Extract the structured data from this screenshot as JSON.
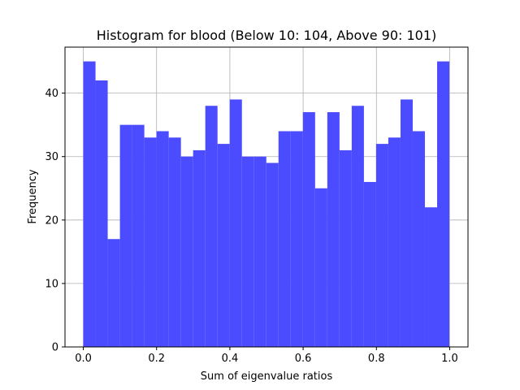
{
  "chart_data": {
    "type": "bar",
    "title": "Histogram for blood (Below 10: 104, Above 90: 101)",
    "xlabel": "Sum of eigenvalue ratios",
    "ylabel": "Frequency",
    "xlim": [
      -0.05,
      1.05
    ],
    "ylim": [
      0,
      47.25
    ],
    "grid": true,
    "bar_color": "#4b4bff",
    "bin_start": 0.0,
    "bin_width": 0.0333,
    "values": [
      45,
      42,
      17,
      35,
      35,
      33,
      34,
      33,
      30,
      31,
      38,
      32,
      39,
      30,
      30,
      29,
      34,
      34,
      37,
      25,
      37,
      31,
      38,
      26,
      32,
      33,
      39,
      34,
      22,
      45
    ],
    "xticks": [
      {
        "value": 0.0,
        "label": "0.0"
      },
      {
        "value": 0.2,
        "label": "0.2"
      },
      {
        "value": 0.4,
        "label": "0.4"
      },
      {
        "value": 0.6,
        "label": "0.6"
      },
      {
        "value": 0.8,
        "label": "0.8"
      },
      {
        "value": 1.0,
        "label": "1.0"
      }
    ],
    "yticks": [
      {
        "value": 0,
        "label": "0"
      },
      {
        "value": 10,
        "label": "10"
      },
      {
        "value": 20,
        "label": "20"
      },
      {
        "value": 30,
        "label": "30"
      },
      {
        "value": 40,
        "label": "40"
      }
    ]
  }
}
